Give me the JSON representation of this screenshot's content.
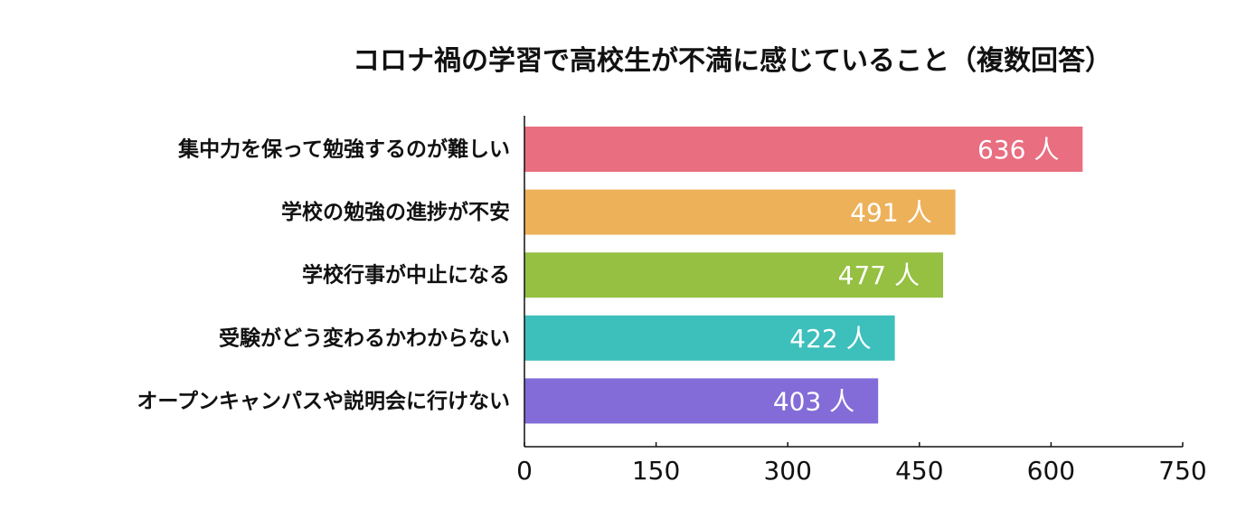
{
  "chart_data": {
    "type": "bar",
    "orientation": "horizontal",
    "title": "コロナ禍の学習で高校生が不満に感じていること（複数回答）",
    "categories": [
      "集中力を保って勉強するのが難しい",
      "学校の勉強の進捗が不安",
      "学校行事が中止になる",
      "受験がどう変わるかわからない",
      "オープンキャンパスや説明会に行けない"
    ],
    "values": [
      636,
      491,
      477,
      422,
      403
    ],
    "value_labels": [
      "636 人",
      "491 人",
      "477 人",
      "422 人",
      "403 人"
    ],
    "colors": [
      "#E86E80",
      "#EDB15A",
      "#95C042",
      "#3DBFBC",
      "#836CD8"
    ],
    "x_ticks": [
      "0",
      "150",
      "300",
      "450",
      "600",
      "750"
    ],
    "xlim": [
      0,
      750
    ],
    "grid": false,
    "legend": "none"
  }
}
